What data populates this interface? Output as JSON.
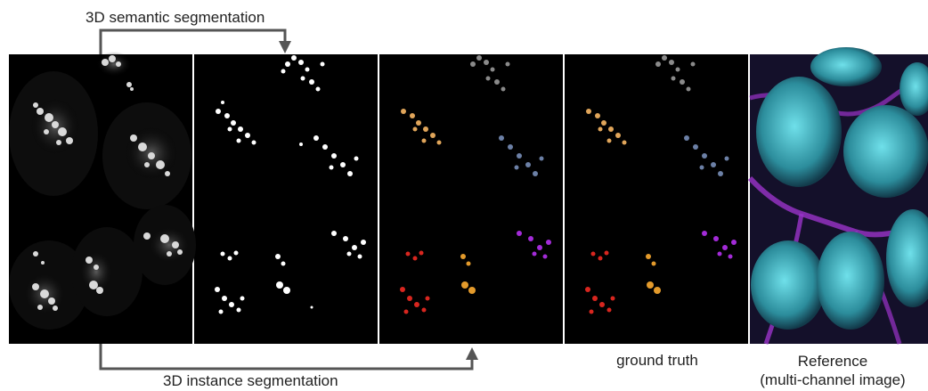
{
  "labels": {
    "semantic": "3D semantic segmentation",
    "instance": "3D instance segmentation",
    "ground_truth": "ground truth",
    "reference_line1": "Reference",
    "reference_line2": "(multi-channel image)"
  },
  "colors": {
    "arrow": "#555555",
    "panel_bg": "#000000",
    "mask_white": "#ffffff",
    "gray_semantic": "#8a8a8a",
    "instance_orange_1": "#e0a55a",
    "instance_blue": "#6c80a6",
    "instance_purple": "#a32bd8",
    "instance_red": "#d8261f",
    "instance_orange_2": "#e39a2b",
    "reference_cyan": "#49c7d4",
    "reference_magenta": "#9a33c9"
  }
}
